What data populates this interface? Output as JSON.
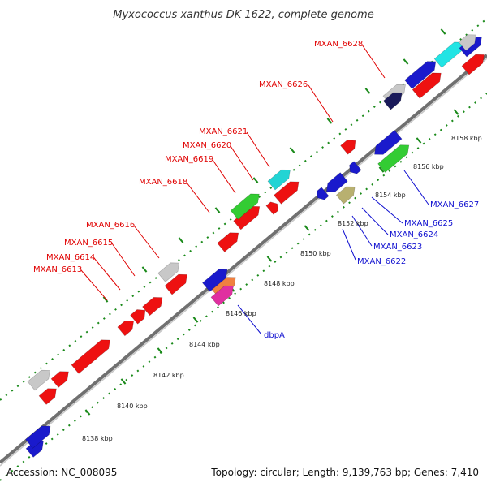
{
  "title": "Myxococcus xanthus DK 1622, complete genome",
  "footer": {
    "accession": "Accession: NC_008095",
    "summary": "Topology: circular; Length: 9,139,763 bp; Genes: 7,410"
  },
  "colors": {
    "backbone": "#808080",
    "tick": "#1a8a1a",
    "label_top": "#e00000",
    "label_bottom": "#1010d0",
    "leader_top": "#e00000",
    "leader_bottom": "#1010d0"
  },
  "scale_ticks": [
    {
      "label": "8138 kbp"
    },
    {
      "label": "8140 kbp"
    },
    {
      "label": "8142 kbp"
    },
    {
      "label": "8144 kbp"
    },
    {
      "label": "8146 kbp"
    },
    {
      "label": "8148 kbp"
    },
    {
      "label": "8150 kbp"
    },
    {
      "label": "8152 kbp"
    },
    {
      "label": "8154 kbp"
    },
    {
      "label": "8156 kbp"
    },
    {
      "label": "8158 kbp"
    }
  ],
  "gene_labels_top": [
    {
      "name": "MXAN_6613"
    },
    {
      "name": "MXAN_6614"
    },
    {
      "name": "MXAN_6615"
    },
    {
      "name": "MXAN_6616"
    },
    {
      "name": "MXAN_6618"
    },
    {
      "name": "MXAN_6619"
    },
    {
      "name": "MXAN_6620"
    },
    {
      "name": "MXAN_6621"
    },
    {
      "name": "MXAN_6626"
    },
    {
      "name": "MXAN_6628"
    }
  ],
  "gene_labels_bottom": [
    {
      "name": "dbpA"
    },
    {
      "name": "MXAN_6622"
    },
    {
      "name": "MXAN_6623"
    },
    {
      "name": "MXAN_6624"
    },
    {
      "name": "MXAN_6625"
    },
    {
      "name": "MXAN_6627"
    }
  ]
}
